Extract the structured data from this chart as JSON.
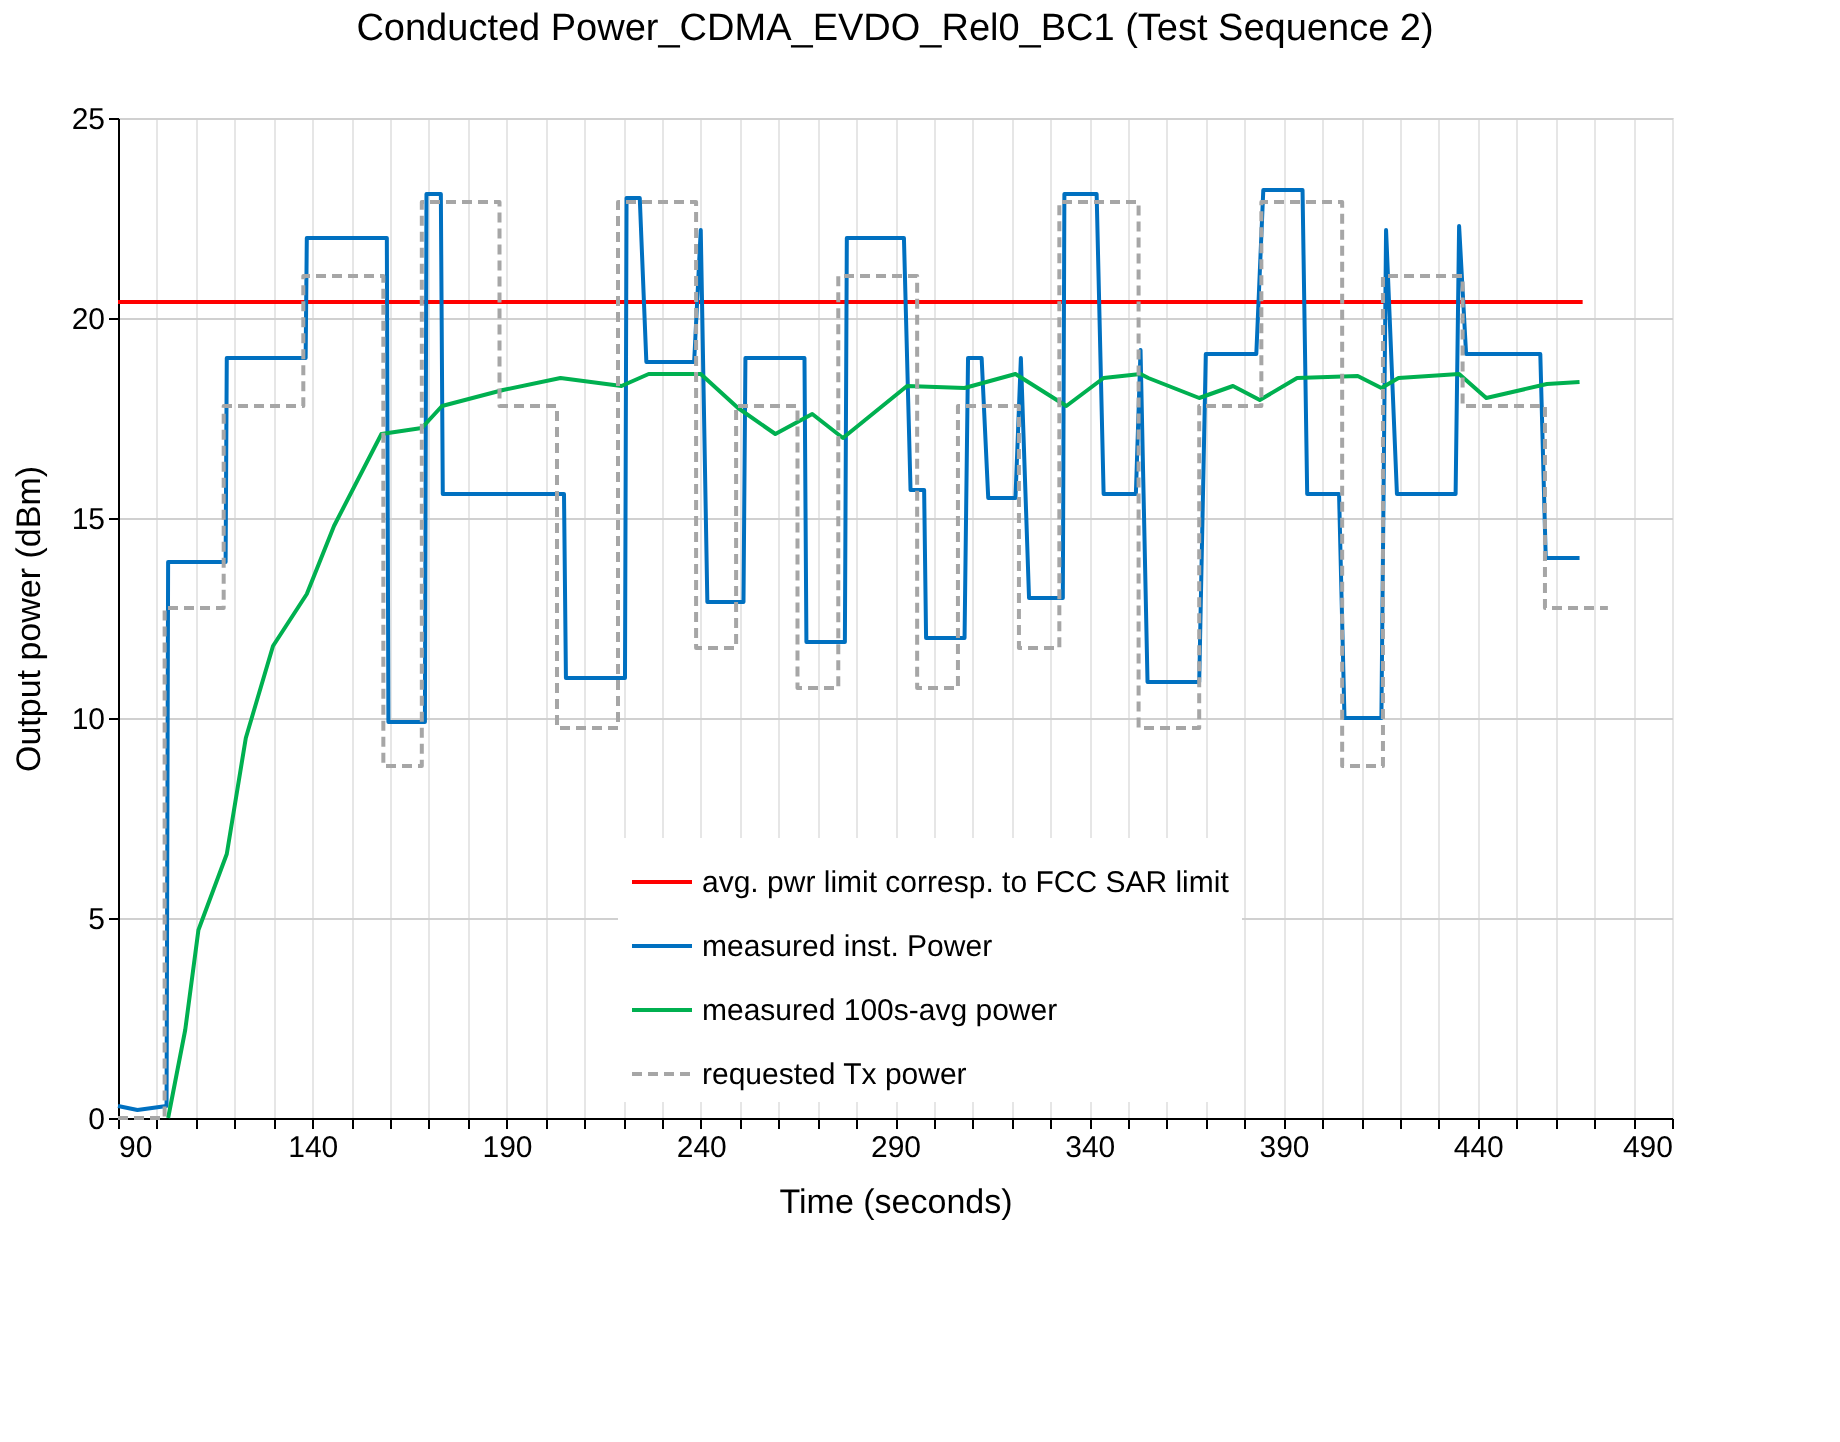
{
  "chart_data": {
    "type": "line",
    "title": "Conducted Power_CDMA_EVDO_Rel0_BC1  (Test Sequence 2)",
    "xlabel": "Time (seconds)",
    "ylabel": "Output power (dBm)",
    "xlim": [
      90,
      490
    ],
    "ylim": [
      0,
      25
    ],
    "xticks": [
      90,
      {
        "value": 100,
        "label": null
      },
      {
        "value": 110,
        "label": null
      },
      {
        "value": 120,
        "label": null
      },
      {
        "value": 130,
        "label": null
      },
      140,
      {
        "value": 150,
        "label": null
      },
      {
        "value": 160,
        "label": null
      },
      {
        "value": 170,
        "label": null
      },
      {
        "value": 180,
        "label": null
      },
      190,
      {
        "value": 200,
        "label": null
      },
      {
        "value": 210,
        "label": null
      },
      {
        "value": 220,
        "label": null
      },
      {
        "value": 230,
        "label": null
      },
      240,
      {
        "value": 250,
        "label": null
      },
      {
        "value": 260,
        "label": null
      },
      {
        "value": 270,
        "label": null
      },
      {
        "value": 280,
        "label": null
      },
      290,
      {
        "value": 300,
        "label": null
      },
      {
        "value": 310,
        "label": null
      },
      {
        "value": 320,
        "label": null
      },
      {
        "value": 330,
        "label": null
      },
      340,
      {
        "value": 350,
        "label": null
      },
      {
        "value": 360,
        "label": null
      },
      {
        "value": 370,
        "label": null
      },
      {
        "value": 380,
        "label": null
      },
      390,
      {
        "value": 400,
        "label": null
      },
      {
        "value": 410,
        "label": null
      },
      {
        "value": 420,
        "label": null
      },
      {
        "value": 430,
        "label": null
      },
      440,
      {
        "value": 450,
        "label": null
      },
      {
        "value": 460,
        "label": null
      },
      {
        "value": 470,
        "label": null
      },
      {
        "value": 480,
        "label": null
      },
      490
    ],
    "yticks": [
      0,
      5,
      10,
      15,
      20,
      25
    ],
    "grid": true,
    "legend": "bottom",
    "marker": "none",
    "series": [
      {
        "name": "avg. pwr limit corresp. to FCC SAR limit",
        "color": "#ff0000",
        "line_style": "solid",
        "x": [
          90,
          467
        ],
        "values": [
          20.4,
          20.4
        ]
      },
      {
        "name": "measured inst. Power",
        "color": "#0070c0",
        "line_style": "solid",
        "x": [
          90,
          95,
          102.5,
          102.9,
          110,
          117.7,
          118,
          128,
          138.3,
          138.6,
          148,
          159.2,
          159.6,
          169,
          169.4,
          173.1,
          173.6,
          204.8,
          205.3,
          220.5,
          220.9,
          224.3,
          226,
          238.3,
          240,
          241.7,
          251,
          251.5,
          266.7,
          267.2,
          277.1,
          277.6,
          292.3,
          294,
          297.5,
          298,
          307.9,
          308.8,
          312.3,
          314,
          321,
          322.4,
          324.5,
          333.2,
          333.6,
          341.9,
          343.7,
          352,
          353.2,
          355,
          368.3,
          370,
          383,
          384.8,
          394.9,
          396.1,
          404.3,
          405.7,
          415.2,
          416.4,
          419.2,
          434.3,
          435.2,
          437,
          456.1,
          457.5,
          466.2
        ],
        "values": [
          0.3,
          0.2,
          0.3,
          13.9,
          13.9,
          13.9,
          19.0,
          19.0,
          19.0,
          22.0,
          22.0,
          22.0,
          9.9,
          9.9,
          23.1,
          23.1,
          15.6,
          15.6,
          11.0,
          11.0,
          23.0,
          23.0,
          18.9,
          18.9,
          22.2,
          12.9,
          12.9,
          19.0,
          19.0,
          11.9,
          11.9,
          22.0,
          22.0,
          15.7,
          15.7,
          12.0,
          12.0,
          19.0,
          19.0,
          15.5,
          15.5,
          19.0,
          13.0,
          13.0,
          23.1,
          23.1,
          15.6,
          15.6,
          19.2,
          10.9,
          10.9,
          19.1,
          19.1,
          23.2,
          23.2,
          15.6,
          15.6,
          10.0,
          10.0,
          22.2,
          15.6,
          15.6,
          22.3,
          19.1,
          19.1,
          14.0,
          14.0
        ]
      },
      {
        "name": "measured 100s-avg power",
        "color": "#00b050",
        "line_style": "solid",
        "x": [
          102.9,
          107.3,
          110.7,
          118,
          122.9,
          129.9,
          138.6,
          145.6,
          157.8,
          168.2,
          173.4,
          189.1,
          203.9,
          219.6,
          226.6,
          240,
          249.6,
          259.2,
          268.7,
          276.6,
          293.1,
          307.9,
          321,
          334.1,
          343.7,
          353.2,
          355.2,
          368.3,
          377,
          383.9,
          393.5,
          409.1,
          415.2,
          419.6,
          435.2,
          442.2,
          457.8,
          466.2
        ],
        "values": [
          0,
          2.2,
          4.7,
          6.6,
          9.5,
          11.8,
          13.1,
          14.8,
          17.1,
          17.25,
          17.8,
          18.2,
          18.5,
          18.3,
          18.6,
          18.6,
          17.75,
          17.1,
          17.6,
          17.0,
          18.3,
          18.25,
          18.6,
          17.8,
          18.5,
          18.6,
          18.5,
          18.0,
          18.3,
          17.95,
          18.5,
          18.55,
          18.25,
          18.5,
          18.6,
          18.0,
          18.35,
          18.4
        ]
      },
      {
        "name": "requested Tx power",
        "color": "#a6a6a6",
        "line_style": "dashed",
        "x": [
          90,
          102,
          102,
          117.2,
          117.2,
          137.7,
          137.7,
          158.3,
          158.3,
          168.2,
          168.2,
          188.2,
          188.2,
          203,
          203,
          218.7,
          218.7,
          238.8,
          238.8,
          249.1,
          249.1,
          264.9,
          264.9,
          275.4,
          275.4,
          295.7,
          295.7,
          306.2,
          306.2,
          321.9,
          321.9,
          332.3,
          332.3,
          352.7,
          352.7,
          368.3,
          368.3,
          384.3,
          384.3,
          405.1,
          405.1,
          415.6,
          415.6,
          436.1,
          436.1,
          457.3,
          457.3,
          473.5
        ],
        "values": [
          0,
          0,
          12.75,
          12.75,
          17.8,
          17.8,
          21.05,
          21.05,
          8.8,
          8.8,
          22.9,
          22.9,
          17.8,
          17.8,
          9.75,
          9.75,
          22.9,
          22.9,
          11.75,
          11.75,
          17.8,
          17.8,
          10.75,
          10.75,
          21.05,
          21.05,
          10.75,
          10.75,
          17.8,
          17.8,
          11.75,
          11.75,
          22.9,
          22.9,
          9.75,
          9.75,
          17.8,
          17.8,
          22.9,
          22.9,
          8.8,
          8.8,
          21.05,
          21.05,
          17.8,
          17.8,
          12.75,
          12.75
        ]
      }
    ]
  }
}
